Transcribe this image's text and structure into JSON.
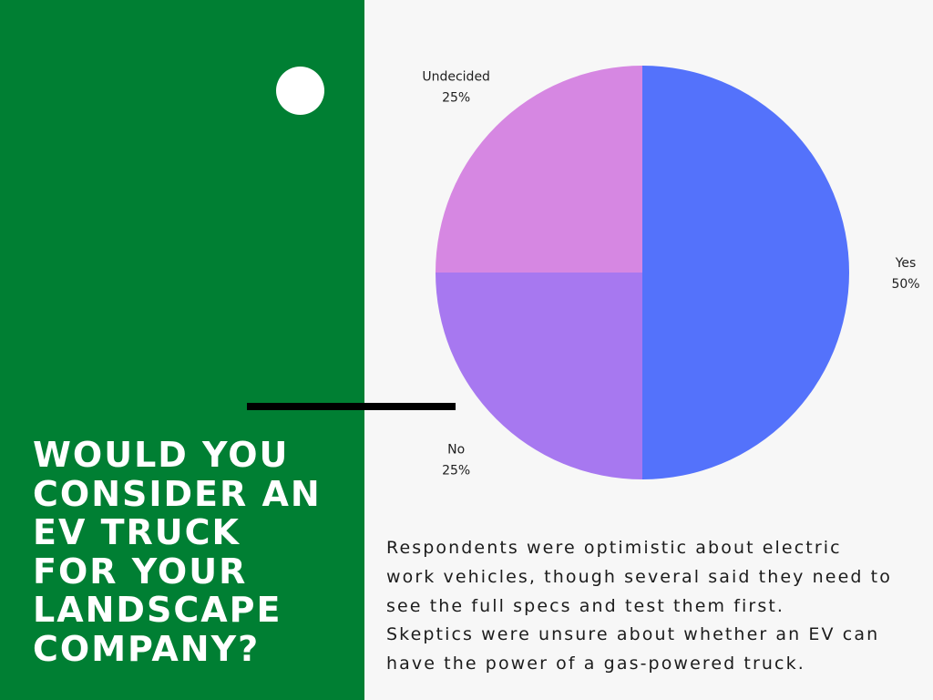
{
  "question": "WOULD YOU\nCONSIDER AN\nEV TRUCK\nFOR YOUR\nLANDSCAPE\nCOMPANY?",
  "summary": "Respondents were optimistic about electric\nwork vehicles, though several said they need to\nsee the full specs and test them first.\nSkeptics were unsure about whether an EV can\nhave the power of a gas-powered  truck.",
  "colors": {
    "left_panel": "#007f33",
    "background": "#f7f7f7"
  },
  "chart_data": {
    "type": "pie",
    "title": "",
    "categories": [
      "Yes",
      "No",
      "Undecided"
    ],
    "values": [
      50,
      25,
      25
    ],
    "value_labels": [
      "50%",
      "25%",
      "25%"
    ],
    "colors": [
      "#5472fb",
      "#a778f0",
      "#d687e2"
    ],
    "start_angle": "12 o'clock",
    "direction": "clockwise",
    "legend": "none (labels beside slices)"
  }
}
